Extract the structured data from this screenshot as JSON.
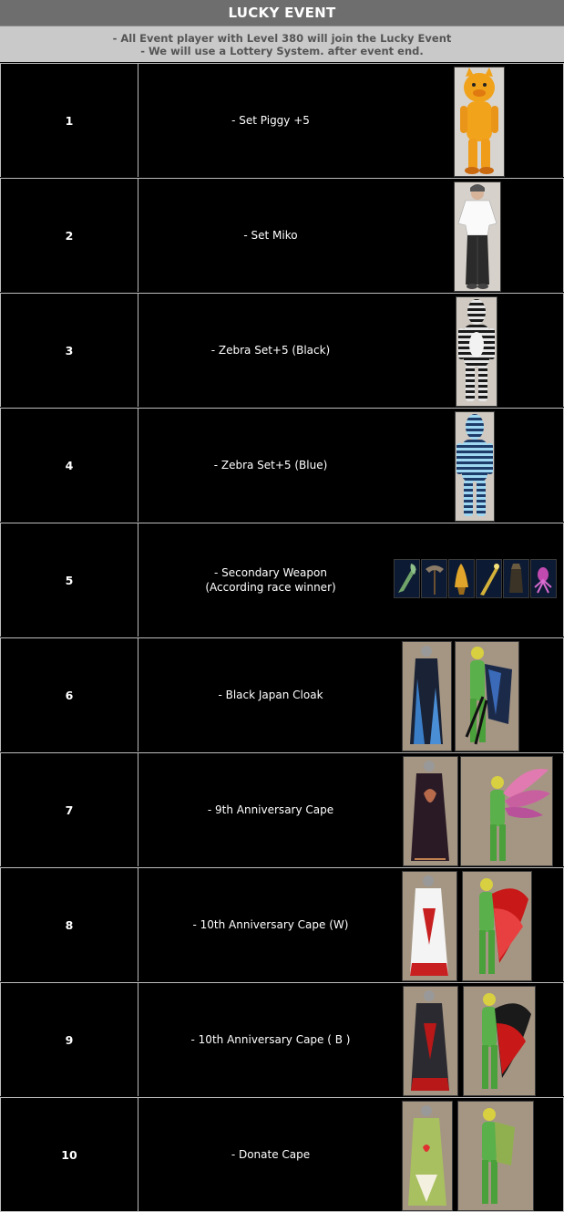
{
  "header": {
    "title": "LUCKY EVENT",
    "note_1": "- All Event player with Level 380 will join the Lucky Event",
    "note_2": "- We will use a Lottery System. after event end."
  },
  "colors": {
    "title_bg": "#6e6e6e",
    "notes_bg": "#c9c9c9",
    "notes_text": "#555555",
    "table_bg": "#000000",
    "border": "#bdbdbd"
  },
  "rows": [
    {
      "number": "1",
      "prize": "- Set Piggy +5"
    },
    {
      "number": "2",
      "prize": "- Set Miko"
    },
    {
      "number": "3",
      "prize": "- Zebra Set+5 (Black)"
    },
    {
      "number": "4",
      "prize": "- Zebra Set+5 (Blue)"
    },
    {
      "number": "5",
      "prize": "- Secondary Weapon",
      "prize_line_2": "(According race winner)"
    },
    {
      "number": "6",
      "prize": "- Black Japan Cloak"
    },
    {
      "number": "7",
      "prize": "- 9th Anniversary Cape"
    },
    {
      "number": "8",
      "prize": "- 10th Anniversary Cape (W)"
    },
    {
      "number": "9",
      "prize": "- 10th Anniversary Cape ( B )"
    },
    {
      "number": "10",
      "prize": "- Donate Cape"
    }
  ]
}
